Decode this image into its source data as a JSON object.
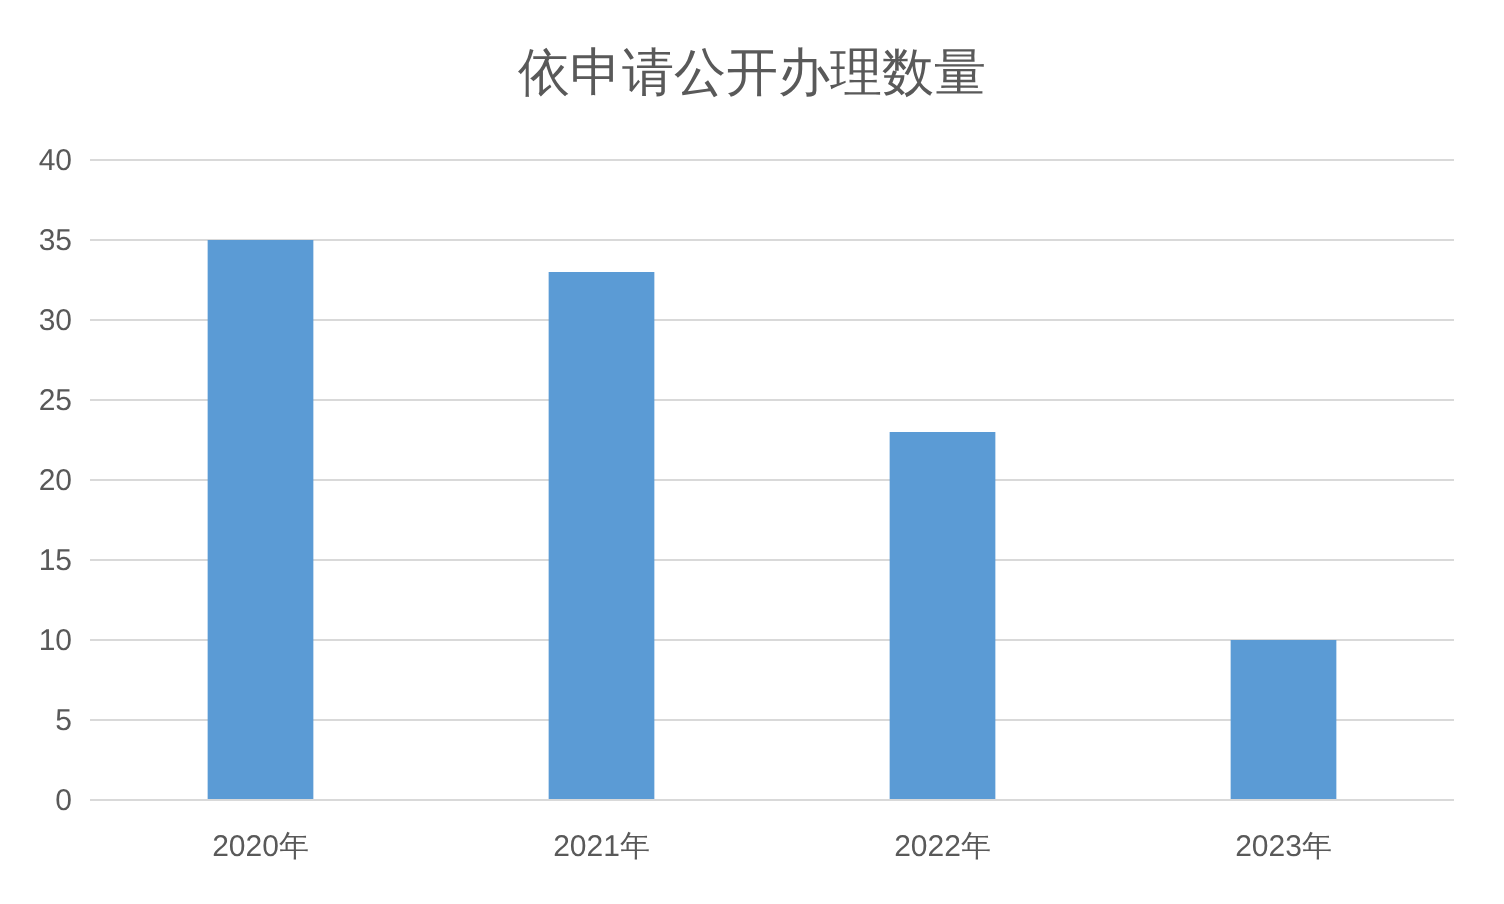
{
  "chart_data": {
    "type": "bar",
    "title": "依申请公开办理数量",
    "categories": [
      "2020年",
      "2021年",
      "2022年",
      "2023年"
    ],
    "values": [
      35,
      33,
      23,
      10
    ],
    "color": "#5b9bd5",
    "ylim": [
      0,
      40
    ],
    "yticks": [
      0,
      5,
      10,
      15,
      20,
      25,
      30,
      35,
      40
    ],
    "grid": "y"
  }
}
